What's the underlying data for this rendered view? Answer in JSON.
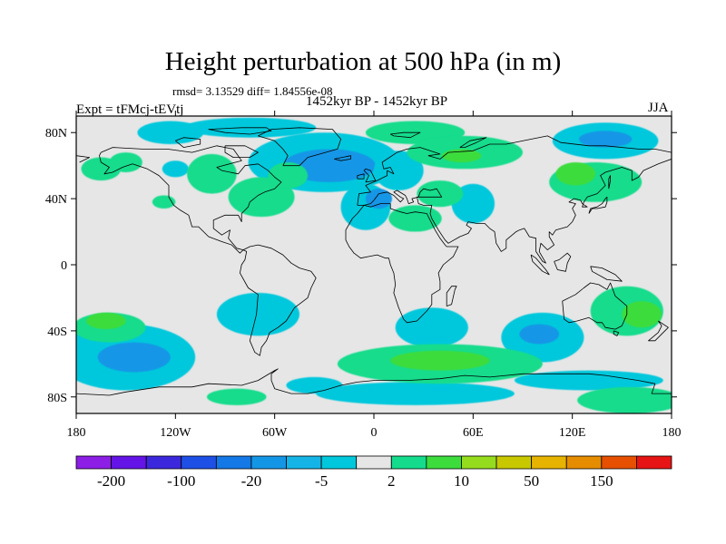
{
  "header": {
    "title": "Height perturbation at 500 hPa (in m)",
    "stats": "rmsd= 3.13529  diff= 1.84556e-08",
    "experiment": "Expt = tFMcj-tEVtj",
    "period": "1452kyr BP - 1452kyr BP",
    "season": "JJA"
  },
  "map": {
    "projection": "cylindrical equidistant",
    "lon_range": [
      -180,
      180
    ],
    "lat_range": [
      -90,
      90
    ],
    "x_ticks": [
      {
        "value": -180,
        "label": "180"
      },
      {
        "value": -120,
        "label": "120W"
      },
      {
        "value": -60,
        "label": "60W"
      },
      {
        "value": 0,
        "label": "0"
      },
      {
        "value": 60,
        "label": "60E"
      },
      {
        "value": 120,
        "label": "120E"
      },
      {
        "value": 180,
        "label": "180"
      }
    ],
    "y_ticks": [
      {
        "value": 80,
        "label": "80N"
      },
      {
        "value": 40,
        "label": "40N"
      },
      {
        "value": 0,
        "label": "0"
      },
      {
        "value": -40,
        "label": "40S"
      },
      {
        "value": -80,
        "label": "80S"
      }
    ],
    "background_color": "#e6e6e6",
    "coastline_color": "#000000"
  },
  "colorbar": {
    "colors": [
      "#8c1ee6",
      "#6414e6",
      "#3c28dc",
      "#1e50e6",
      "#1478e6",
      "#1496e6",
      "#14b4e6",
      "#00c8dc",
      "#e6e6e6",
      "#14dc8c",
      "#3cdc3c",
      "#96dc1e",
      "#c8c800",
      "#e6b400",
      "#e68c00",
      "#e65000",
      "#e61414"
    ],
    "labels": [
      {
        "after_box": 0,
        "text": "-200"
      },
      {
        "after_box": 2,
        "text": "-100"
      },
      {
        "after_box": 4,
        "text": "-20"
      },
      {
        "after_box": 6,
        "text": "-5"
      },
      {
        "after_box": 8,
        "text": "2"
      },
      {
        "after_box": 10,
        "text": "10"
      },
      {
        "after_box": 12,
        "text": "50"
      },
      {
        "after_box": 14,
        "text": "150"
      }
    ]
  },
  "anomalies": [
    {
      "lon": -123,
      "lat": 80,
      "rx": 20,
      "ry": 7,
      "level": "-5"
    },
    {
      "lon": -75,
      "lat": 83,
      "rx": 40,
      "ry": 6,
      "level": "-5"
    },
    {
      "lon": -30,
      "lat": 62,
      "rx": 46,
      "ry": 18,
      "level": "-5"
    },
    {
      "lon": -27,
      "lat": 60,
      "rx": 28,
      "ry": 10,
      "level": "-20"
    },
    {
      "lon": -5,
      "lat": 35,
      "rx": 15,
      "ry": 14,
      "level": "-5"
    },
    {
      "lon": 3,
      "lat": 40,
      "rx": 8,
      "ry": 6,
      "level": "-20"
    },
    {
      "lon": 15,
      "lat": 57,
      "rx": 15,
      "ry": 12,
      "level": "-5"
    },
    {
      "lon": 60,
      "lat": 37,
      "rx": 13,
      "ry": 12,
      "level": "-5"
    },
    {
      "lon": 140,
      "lat": 75,
      "rx": 32,
      "ry": 11,
      "level": "-5"
    },
    {
      "lon": 140,
      "lat": 76,
      "rx": 16,
      "ry": 5,
      "level": "-20"
    },
    {
      "lon": -120,
      "lat": 58,
      "rx": 8,
      "ry": 5,
      "level": "-5"
    },
    {
      "lon": -150,
      "lat": -56,
      "rx": 42,
      "ry": 20,
      "level": "-5"
    },
    {
      "lon": -145,
      "lat": -56,
      "rx": 22,
      "ry": 9,
      "level": "-20"
    },
    {
      "lon": -70,
      "lat": -30,
      "rx": 25,
      "ry": 13,
      "level": "-5"
    },
    {
      "lon": -36,
      "lat": -73,
      "rx": 17,
      "ry": 5,
      "level": "-5"
    },
    {
      "lon": 35,
      "lat": -38,
      "rx": 22,
      "ry": 12,
      "level": "-5"
    },
    {
      "lon": 102,
      "lat": -44,
      "rx": 25,
      "ry": 15,
      "level": "-5"
    },
    {
      "lon": 100,
      "lat": -42,
      "rx": 12,
      "ry": 6,
      "level": "-20"
    },
    {
      "lon": 25,
      "lat": -78,
      "rx": 60,
      "ry": 7,
      "level": "-5"
    },
    {
      "lon": 130,
      "lat": -70,
      "rx": 45,
      "ry": 6,
      "level": "-5"
    },
    {
      "lon": -165,
      "lat": 58,
      "rx": 12,
      "ry": 7,
      "level": "2"
    },
    {
      "lon": -150,
      "lat": 62,
      "rx": 10,
      "ry": 6,
      "level": "2"
    },
    {
      "lon": -98,
      "lat": 55,
      "rx": 15,
      "ry": 12,
      "level": "2"
    },
    {
      "lon": -68,
      "lat": 41,
      "rx": 20,
      "ry": 12,
      "level": "2"
    },
    {
      "lon": -52,
      "lat": 54,
      "rx": 12,
      "ry": 8,
      "level": "2"
    },
    {
      "lon": -127,
      "lat": 38,
      "rx": 7,
      "ry": 4,
      "level": "2"
    },
    {
      "lon": 25,
      "lat": 80,
      "rx": 30,
      "ry": 7,
      "level": "2"
    },
    {
      "lon": 55,
      "lat": 68,
      "rx": 35,
      "ry": 10,
      "level": "2"
    },
    {
      "lon": 53,
      "lat": 66,
      "rx": 12,
      "ry": 4,
      "level": "10"
    },
    {
      "lon": 40,
      "lat": 43,
      "rx": 14,
      "ry": 8,
      "level": "2"
    },
    {
      "lon": 25,
      "lat": 28,
      "rx": 16,
      "ry": 8,
      "level": "2"
    },
    {
      "lon": 134,
      "lat": 50,
      "rx": 28,
      "ry": 12,
      "level": "2"
    },
    {
      "lon": 122,
      "lat": 55,
      "rx": 12,
      "ry": 7,
      "level": "10"
    },
    {
      "lon": -160,
      "lat": -38,
      "rx": 22,
      "ry": 9,
      "level": "2"
    },
    {
      "lon": -162,
      "lat": -34,
      "rx": 12,
      "ry": 5,
      "level": "10"
    },
    {
      "lon": 40,
      "lat": -60,
      "rx": 62,
      "ry": 12,
      "level": "2"
    },
    {
      "lon": 40,
      "lat": -58,
      "rx": 30,
      "ry": 6,
      "level": "10"
    },
    {
      "lon": 153,
      "lat": -28,
      "rx": 22,
      "ry": 15,
      "level": "2"
    },
    {
      "lon": 162,
      "lat": -30,
      "rx": 12,
      "ry": 8,
      "level": "10"
    },
    {
      "lon": 155,
      "lat": -82,
      "rx": 32,
      "ry": 8,
      "level": "2"
    },
    {
      "lon": -83,
      "lat": -80,
      "rx": 18,
      "ry": 5,
      "level": "2"
    }
  ]
}
